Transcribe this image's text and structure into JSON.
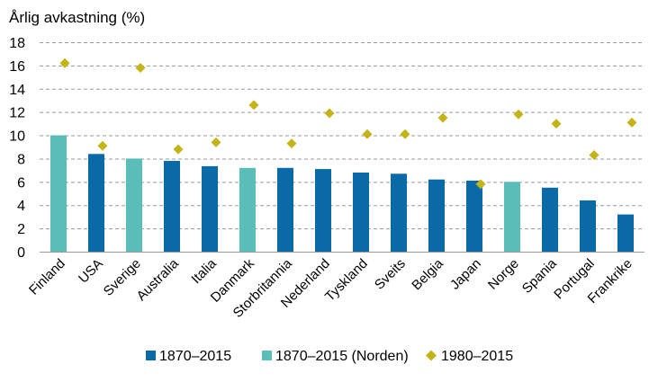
{
  "chart_data": {
    "type": "bar",
    "title": "Årlig avkastning (%)",
    "ylim": [
      0,
      18
    ],
    "yticks": [
      0,
      2,
      4,
      6,
      8,
      10,
      12,
      14,
      16,
      18
    ],
    "grid": true,
    "legend_position": "bottom",
    "categories": [
      "Finland",
      "USA",
      "Sverige",
      "Australia",
      "Italia",
      "Danmark",
      "Storbritannia",
      "Nederland",
      "Tyskland",
      "Sveits",
      "Belgia",
      "Japan",
      "Norge",
      "Spania",
      "Portugal",
      "Frankrike"
    ],
    "nordic": [
      true,
      false,
      true,
      false,
      false,
      true,
      false,
      false,
      false,
      false,
      false,
      false,
      true,
      false,
      false,
      false
    ],
    "series": [
      {
        "name": "1870–2015",
        "kind": "bar",
        "color": "#0a6aa8",
        "values": [
          10.0,
          8.4,
          8.0,
          7.8,
          7.35,
          7.2,
          7.2,
          7.1,
          6.8,
          6.7,
          6.2,
          6.1,
          6.0,
          5.5,
          4.4,
          3.2
        ]
      },
      {
        "name": "1870–2015 (Norden)",
        "kind": "bar",
        "color": "#5bbdb8"
      },
      {
        "name": "1980–2015",
        "kind": "marker",
        "color": "#c3b418",
        "values": [
          16.2,
          9.1,
          15.8,
          8.8,
          9.4,
          12.6,
          9.3,
          11.9,
          10.1,
          10.1,
          11.5,
          5.8,
          11.8,
          11.0,
          8.3,
          11.1
        ]
      }
    ]
  }
}
